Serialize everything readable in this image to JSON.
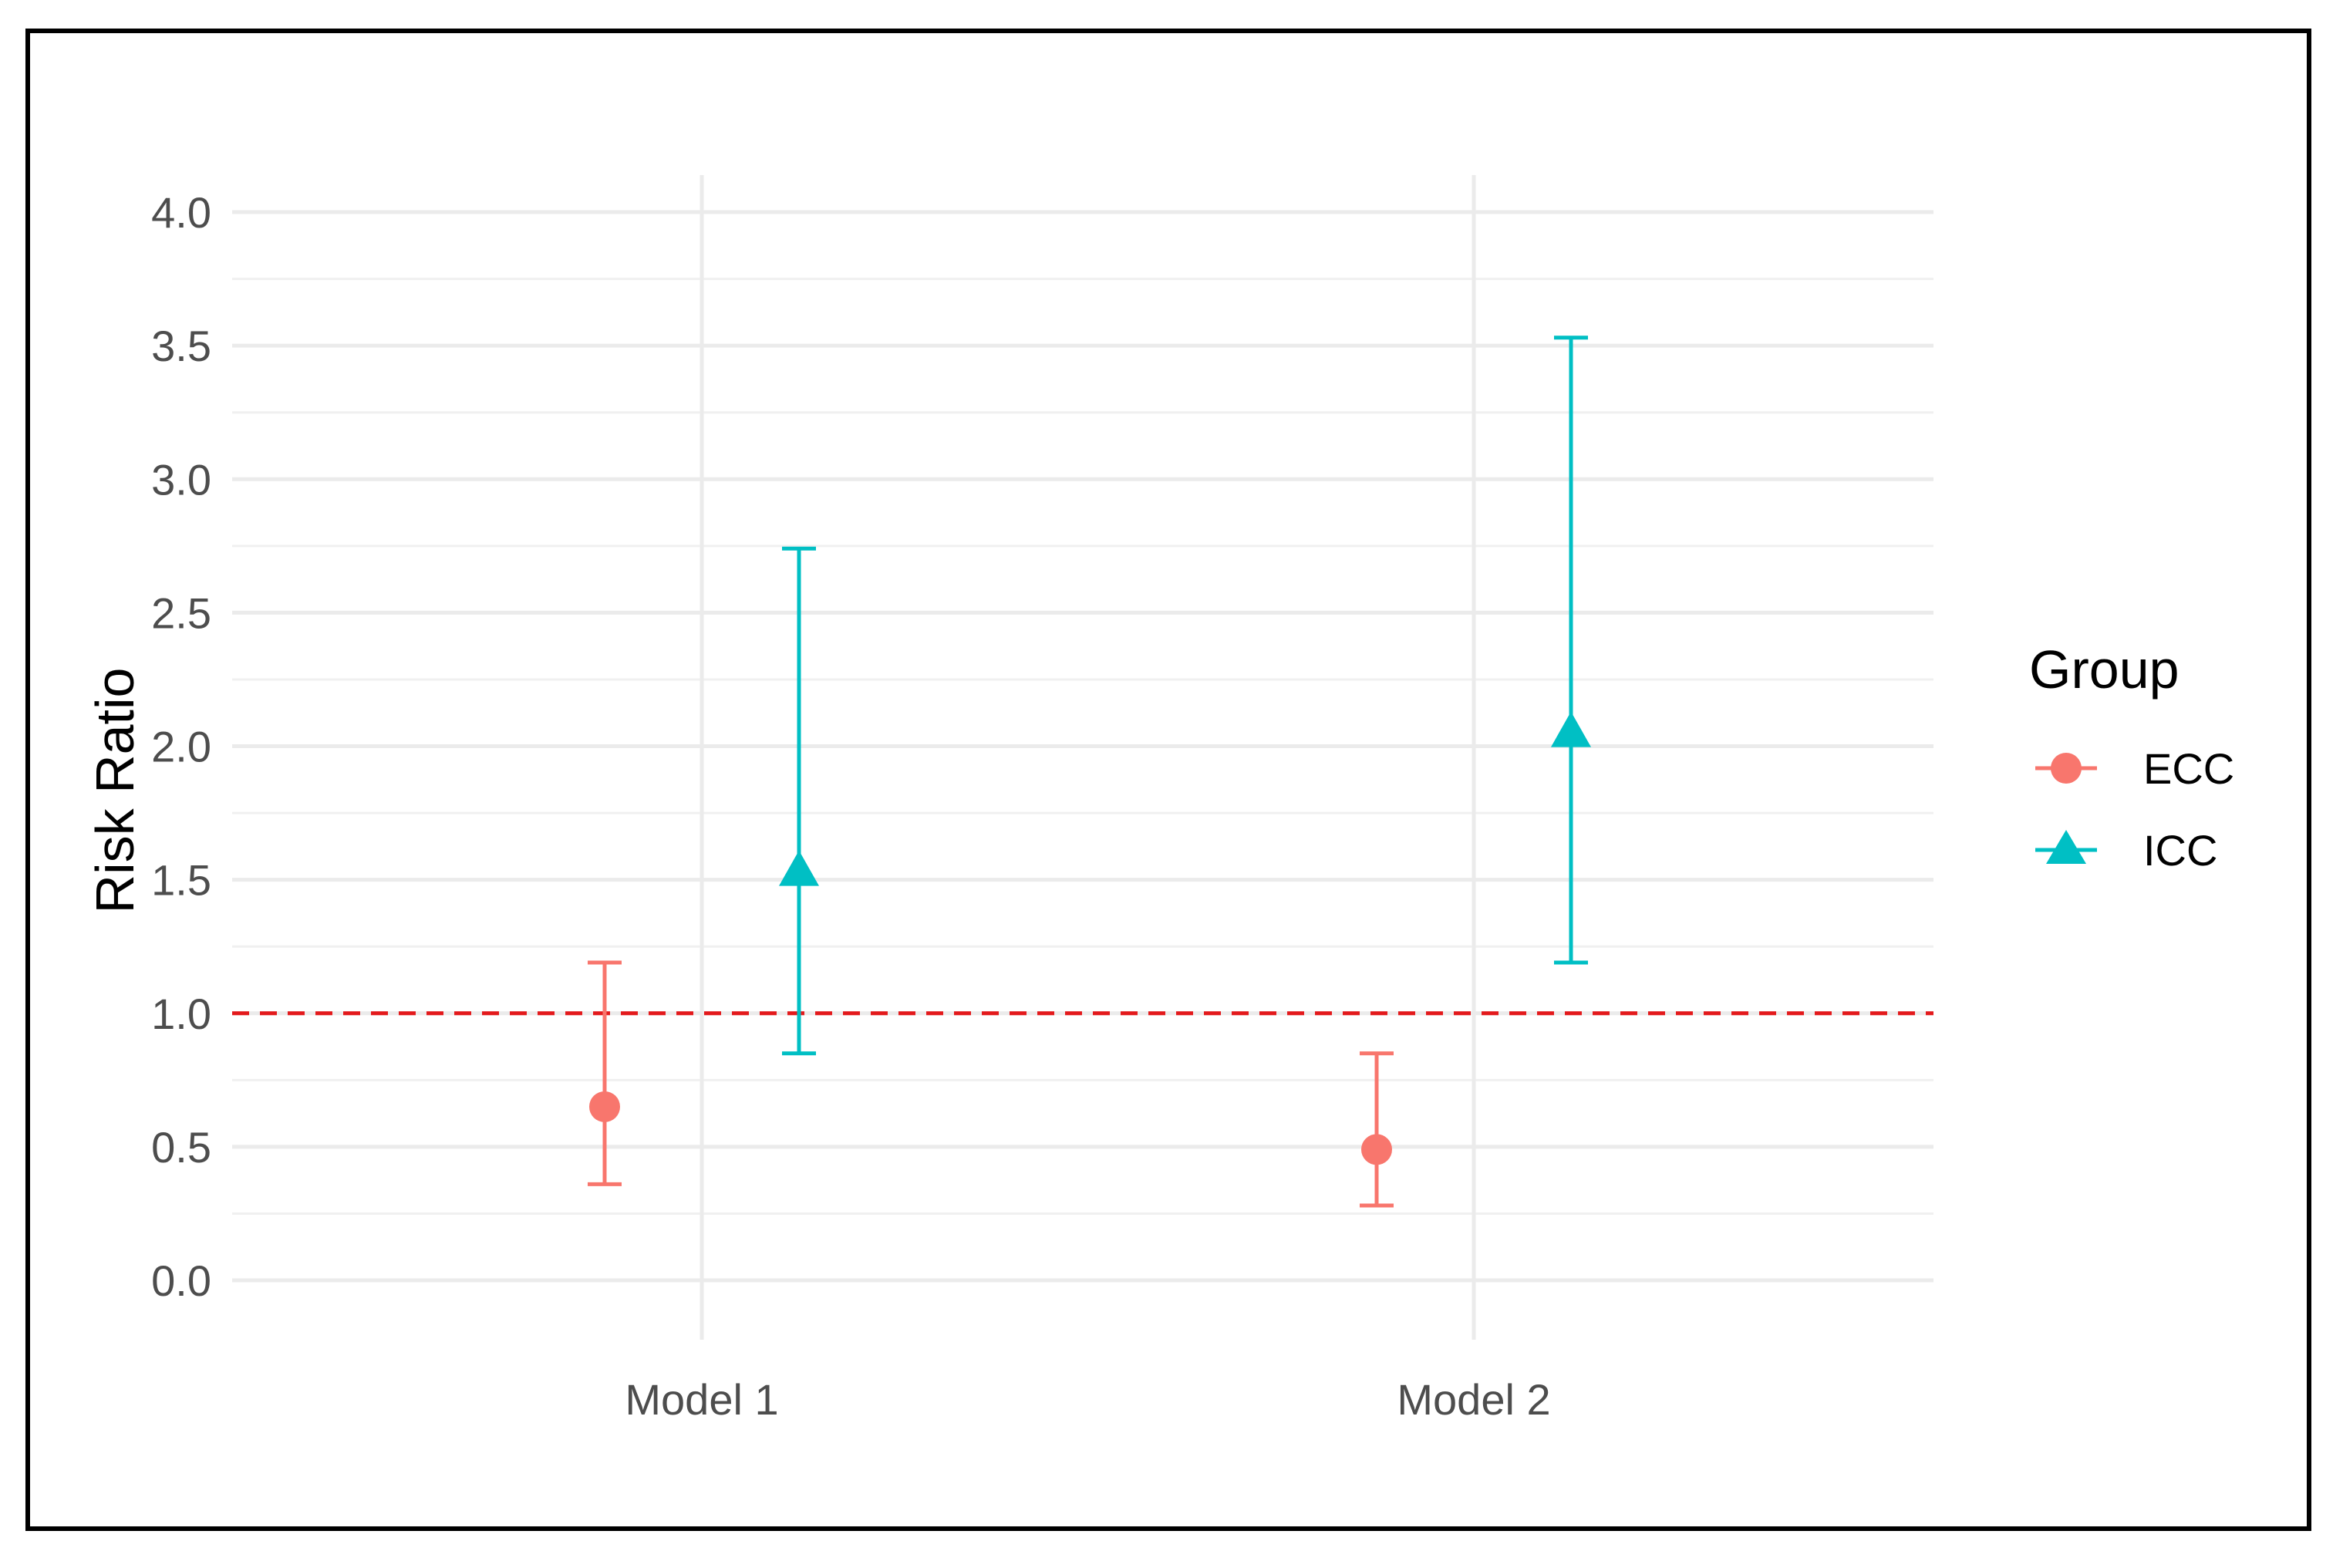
{
  "chart_data": {
    "type": "scatter",
    "subtype": "point-range with error bars",
    "title": "",
    "xlabel": "",
    "ylabel": "Risk Ratio",
    "categories": [
      "Model 1",
      "Model 2"
    ],
    "ylim": [
      0.0,
      4.0
    ],
    "yticks": [
      0.0,
      0.5,
      1.0,
      1.5,
      2.0,
      2.5,
      3.0,
      3.5,
      4.0
    ],
    "ytick_labels": [
      "0.0",
      "0.5",
      "1.0",
      "1.5",
      "2.0",
      "2.5",
      "3.0",
      "3.5",
      "4.0"
    ],
    "grid": true,
    "reference_line": {
      "y": 1.0,
      "style": "dashed",
      "color": "#e31a1c"
    },
    "legend": {
      "title": "Group",
      "placement": "right"
    },
    "series": [
      {
        "name": "ECC",
        "marker": "circle",
        "color": "#f8766d",
        "points": [
          {
            "category": "Model 1",
            "value": 0.65,
            "lower": 0.36,
            "upper": 1.19
          },
          {
            "category": "Model 2",
            "value": 0.49,
            "lower": 0.28,
            "upper": 0.85
          }
        ]
      },
      {
        "name": "ICC",
        "marker": "triangle",
        "color": "#00bfc4",
        "points": [
          {
            "category": "Model 1",
            "value": 1.53,
            "lower": 0.85,
            "upper": 2.74
          },
          {
            "category": "Model 2",
            "value": 2.05,
            "lower": 1.19,
            "upper": 3.53
          }
        ]
      }
    ]
  }
}
